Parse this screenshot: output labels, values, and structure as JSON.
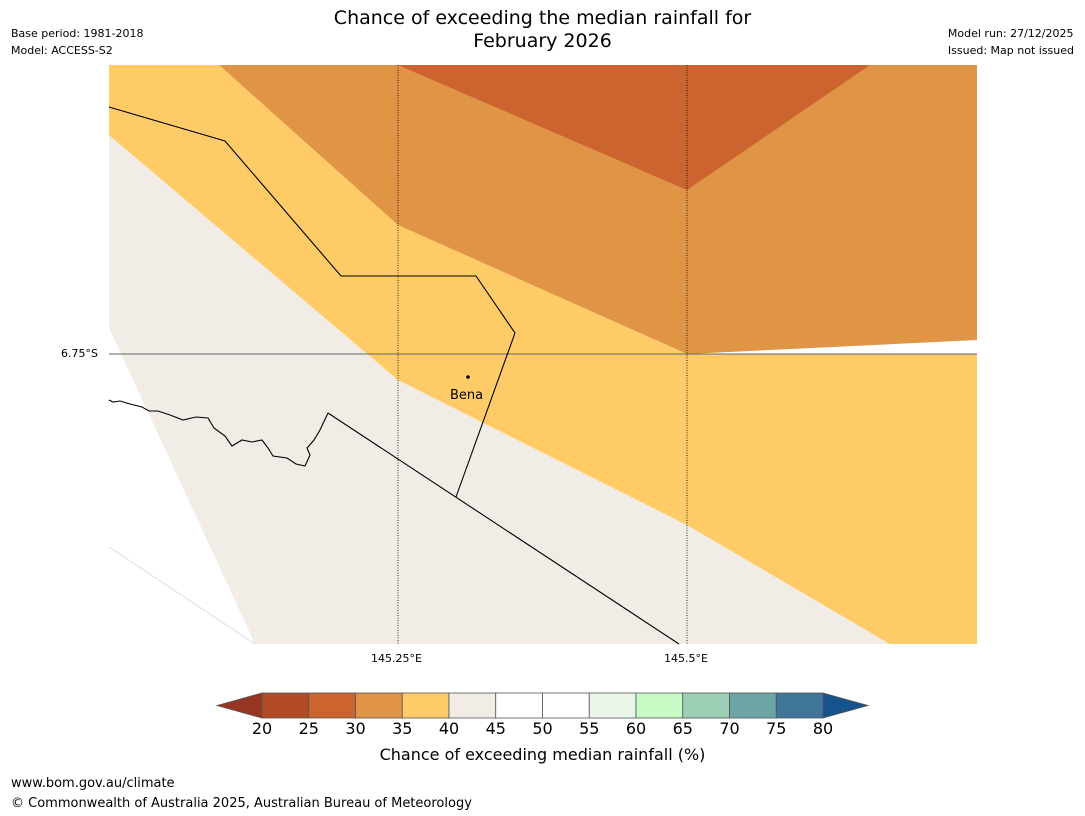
{
  "title": {
    "line1": "Chance of exceeding the median rainfall for",
    "line2": "February 2026"
  },
  "meta_left": {
    "base_period": "Base period: 1981-2018",
    "model": "Model: ACCESS-S2"
  },
  "meta_right": {
    "model_run": "Model run: 27/12/2025",
    "issued": "Issued: Map not issued"
  },
  "map": {
    "latitude_label": "6.75°S",
    "longitude_labels": [
      "145.25°E",
      "145.5°E"
    ],
    "place": {
      "name": "Bena"
    },
    "region_colors": {
      "c25_30": "#cc6430",
      "c30_35": "#e09446",
      "c35_40": "#fecb66",
      "c40_45": "#f1ece6"
    }
  },
  "colorbar": {
    "label": "Chance of exceeding median rainfall (%)",
    "ticks": [
      "20",
      "25",
      "30",
      "35",
      "40",
      "45",
      "50",
      "55",
      "60",
      "65",
      "70",
      "75",
      "80"
    ],
    "under_color": "#963520",
    "over_color": "#14538c",
    "bins": [
      {
        "range": "20-25",
        "color": "#b04b25"
      },
      {
        "range": "25-30",
        "color": "#cc6430"
      },
      {
        "range": "30-35",
        "color": "#e09446"
      },
      {
        "range": "35-40",
        "color": "#fecb66"
      },
      {
        "range": "40-45",
        "color": "#f1ece6"
      },
      {
        "range": "45-50",
        "color": "#ffffff"
      },
      {
        "range": "50-55",
        "color": "#ffffff"
      },
      {
        "range": "55-60",
        "color": "#eaf6e8"
      },
      {
        "range": "60-65",
        "color": "#c6fbc6"
      },
      {
        "range": "65-70",
        "color": "#9ccfb6"
      },
      {
        "range": "70-75",
        "color": "#6da4a6"
      },
      {
        "range": "75-80",
        "color": "#3e7598"
      }
    ]
  },
  "footer": {
    "url": "www.bom.gov.au/climate",
    "copyright": "© Commonwealth of Australia 2025, Australian Bureau of Meteorology"
  }
}
